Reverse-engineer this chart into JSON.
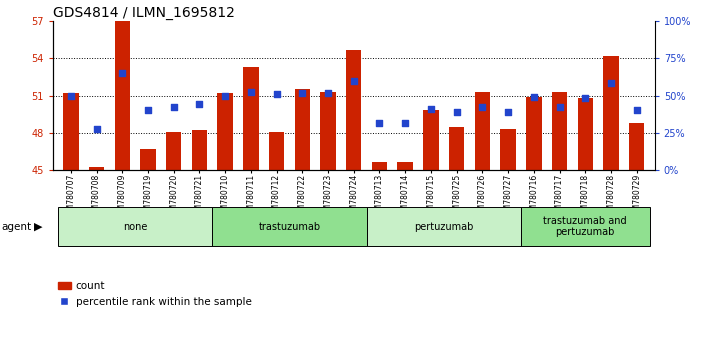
{
  "title": "GDS4814 / ILMN_1695812",
  "samples": [
    "GSM780707",
    "GSM780708",
    "GSM780709",
    "GSM780719",
    "GSM780720",
    "GSM780721",
    "GSM780710",
    "GSM780711",
    "GSM780712",
    "GSM780722",
    "GSM780723",
    "GSM780724",
    "GSM780713",
    "GSM780714",
    "GSM780715",
    "GSM780725",
    "GSM780726",
    "GSM780727",
    "GSM780716",
    "GSM780717",
    "GSM780718",
    "GSM780728",
    "GSM780729"
  ],
  "bar_values": [
    51.2,
    45.2,
    57.0,
    46.7,
    48.1,
    48.2,
    51.2,
    53.3,
    48.1,
    51.5,
    51.3,
    54.7,
    45.6,
    45.6,
    49.8,
    48.5,
    51.3,
    48.3,
    50.9,
    51.3,
    50.8,
    54.2,
    48.8
  ],
  "dot_values": [
    51.0,
    48.3,
    52.8,
    49.8,
    50.1,
    50.3,
    51.0,
    51.3,
    51.1,
    51.2,
    51.2,
    52.2,
    48.8,
    48.8,
    49.9,
    49.7,
    50.1,
    49.7,
    50.9,
    50.1,
    50.8,
    52.0,
    49.8
  ],
  "groups": [
    {
      "label": "none",
      "start": 0,
      "end": 6,
      "color": "#c8f0c8"
    },
    {
      "label": "trastuzumab",
      "start": 6,
      "end": 12,
      "color": "#90e090"
    },
    {
      "label": "pertuzumab",
      "start": 12,
      "end": 18,
      "color": "#c8f0c8"
    },
    {
      "label": "trastuzumab and\npertuzumab",
      "start": 18,
      "end": 23,
      "color": "#90e090"
    }
  ],
  "ylim_min": 45,
  "ylim_max": 57,
  "y_left_ticks": [
    45,
    48,
    51,
    54,
    57
  ],
  "right_tick_positions": [
    45,
    48,
    51,
    54,
    57
  ],
  "right_tick_labels": [
    "0%",
    "25%",
    "50%",
    "75%",
    "100%"
  ],
  "grid_lines": [
    48,
    51,
    54
  ],
  "bar_color": "#cc2200",
  "dot_color": "#2244cc",
  "bar_bottom": 45,
  "title_fontsize": 10,
  "tick_fontsize": 7,
  "label_fontsize": 7,
  "group_fontsize": 7,
  "legend_fontsize": 7.5
}
